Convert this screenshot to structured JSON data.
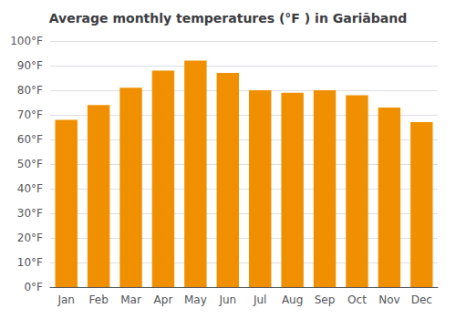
{
  "chart_data": {
    "type": "bar",
    "title": "Average monthly temperatures (°F ) in Gariāband",
    "categories": [
      "Jan",
      "Feb",
      "Mar",
      "Apr",
      "May",
      "Jun",
      "Jul",
      "Aug",
      "Sep",
      "Oct",
      "Nov",
      "Dec"
    ],
    "values": [
      68,
      74,
      81,
      88,
      92,
      87,
      80,
      79,
      80,
      78,
      73,
      67
    ],
    "color": "#F09000",
    "ylim": [
      0,
      100
    ],
    "yticks": [
      {
        "value": 0,
        "label": "0°F"
      },
      {
        "value": 10,
        "label": "10°F"
      },
      {
        "value": 20,
        "label": "20°F"
      },
      {
        "value": 30,
        "label": "30°F"
      },
      {
        "value": 40,
        "label": "40°F"
      },
      {
        "value": 50,
        "label": "50°F"
      },
      {
        "value": 60,
        "label": "60°F"
      },
      {
        "value": 70,
        "label": "70°F"
      },
      {
        "value": 80,
        "label": "80°F"
      },
      {
        "value": 90,
        "label": "90°F"
      },
      {
        "value": 100,
        "label": "100°F"
      }
    ],
    "grid": true
  }
}
